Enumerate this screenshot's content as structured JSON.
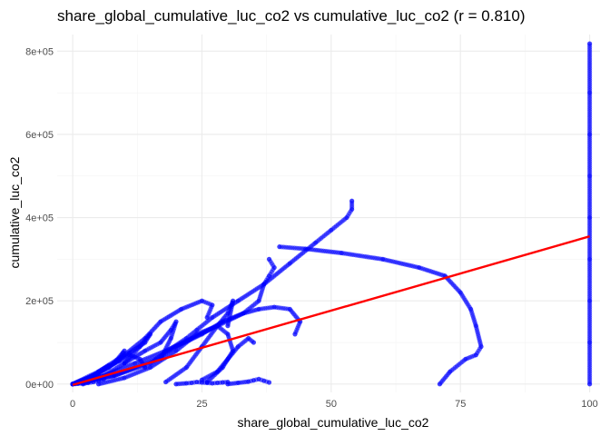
{
  "chart_data": {
    "type": "scatter",
    "title": "share_global_cumulative_luc_co2 vs cumulative_luc_co2 (r = 0.810)",
    "xlabel": "share_global_cumulative_luc_co2",
    "ylabel": "cumulative_luc_co2",
    "xlim": [
      -3,
      102
    ],
    "ylim": [
      -20000,
      840000
    ],
    "x_ticks": [
      0,
      25,
      50,
      75,
      100
    ],
    "x_tick_labels": [
      "0",
      "25",
      "50",
      "75",
      "100"
    ],
    "y_ticks": [
      0,
      200000,
      400000,
      600000,
      800000
    ],
    "y_tick_labels": [
      "0e+00",
      "2e+05",
      "4e+05",
      "6e+05",
      "8e+05"
    ],
    "grid": true,
    "point_color": "#0000ff",
    "line_color": "#ff0000",
    "fit_line": {
      "x": [
        0,
        100
      ],
      "y": [
        -2000,
        355000
      ]
    },
    "series": [
      {
        "x": [
          100,
          100,
          100,
          100,
          100,
          100,
          100,
          100,
          100
        ],
        "y": [
          0,
          100000,
          200000,
          300000,
          400000,
          500000,
          600000,
          700000,
          818000
        ]
      },
      {
        "x": [
          0,
          8,
          16,
          22,
          24,
          27,
          32,
          37,
          42,
          47,
          50,
          53,
          54,
          54
        ],
        "y": [
          0,
          20000,
          60000,
          110000,
          130000,
          160000,
          200000,
          240000,
          290000,
          340000,
          370000,
          400000,
          420000,
          440000
        ]
      },
      {
        "x": [
          40,
          45,
          52,
          60,
          67,
          72,
          75,
          77,
          78,
          79,
          78,
          76,
          73,
          71
        ],
        "y": [
          330000,
          325000,
          315000,
          300000,
          280000,
          260000,
          220000,
          180000,
          140000,
          90000,
          70000,
          60000,
          30000,
          0
        ]
      },
      {
        "x": [
          0,
          6,
          12,
          18,
          23,
          28,
          33,
          36,
          37,
          38,
          39,
          38
        ],
        "y": [
          0,
          20000,
          50000,
          80000,
          110000,
          140000,
          170000,
          200000,
          240000,
          260000,
          280000,
          300000
        ]
      },
      {
        "x": [
          0,
          8,
          15,
          20,
          25,
          29,
          33,
          36,
          39,
          42,
          44,
          43
        ],
        "y": [
          0,
          20000,
          50000,
          90000,
          120000,
          150000,
          170000,
          180000,
          185000,
          180000,
          150000,
          120000
        ]
      },
      {
        "x": [
          0,
          5,
          10,
          14,
          17,
          21,
          25,
          27,
          26
        ],
        "y": [
          0,
          30000,
          70000,
          110000,
          150000,
          180000,
          200000,
          190000,
          160000
        ]
      },
      {
        "x": [
          5,
          10,
          15,
          20,
          24,
          28,
          30,
          31,
          29,
          26
        ],
        "y": [
          0,
          15000,
          40000,
          80000,
          120000,
          140000,
          120000,
          80000,
          40000,
          5000
        ]
      },
      {
        "x": [
          2,
          6,
          10,
          14,
          17,
          19,
          20,
          19,
          17
        ],
        "y": [
          0,
          20000,
          50000,
          80000,
          100000,
          130000,
          150000,
          110000,
          60000
        ]
      },
      {
        "x": [
          0,
          4,
          8,
          11,
          14,
          15,
          13,
          10
        ],
        "y": [
          0,
          20000,
          50000,
          75000,
          100000,
          120000,
          90000,
          50000
        ]
      },
      {
        "x": [
          0,
          3,
          6,
          9,
          11,
          13,
          14
        ],
        "y": [
          0,
          15000,
          35000,
          55000,
          70000,
          60000,
          40000
        ]
      },
      {
        "x": [
          0,
          3,
          5,
          7,
          9,
          10,
          8
        ],
        "y": [
          0,
          10000,
          25000,
          40000,
          60000,
          80000,
          50000
        ]
      },
      {
        "x": [
          0,
          2,
          4,
          6,
          7,
          5
        ],
        "y": [
          0,
          10000,
          20000,
          35000,
          45000,
          30000
        ]
      },
      {
        "x": [
          18,
          22,
          25,
          28,
          30,
          31,
          30
        ],
        "y": [
          5000,
          40000,
          90000,
          140000,
          170000,
          200000,
          140000
        ]
      },
      {
        "x": [
          20,
          22,
          23,
          24,
          25,
          26,
          27,
          28,
          29,
          30
        ],
        "y": [
          0,
          2000,
          3000,
          5000,
          4000,
          3000,
          2000,
          3000,
          4000,
          5000
        ]
      },
      {
        "x": [
          30,
          32,
          34,
          35,
          36,
          37,
          38
        ],
        "y": [
          0,
          3000,
          6000,
          9000,
          12000,
          8000,
          4000
        ]
      },
      {
        "x": [
          25,
          28,
          30,
          32,
          34,
          35
        ],
        "y": [
          10000,
          30000,
          60000,
          90000,
          110000,
          100000
        ]
      },
      {
        "x": [
          0,
          1,
          2,
          3,
          4,
          5,
          6
        ],
        "y": [
          0,
          1000,
          2000,
          3000,
          5000,
          8000,
          12000
        ]
      }
    ]
  }
}
